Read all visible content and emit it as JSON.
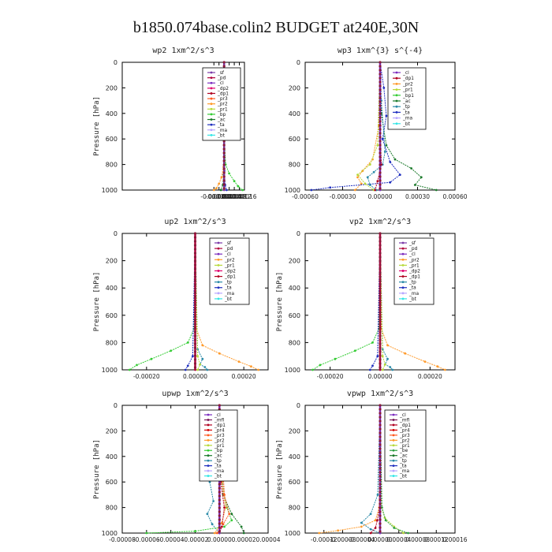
{
  "figure_title": "b1850.074base.colin2  BUDGET at240E,30N",
  "colors": {
    "sf": "#7a3aa8",
    "pd": "#b0003a",
    "cl": "#7b2cbf",
    "dp2": "#e0006b",
    "dp1": "#b00020",
    "pr3": "#ff5a1f",
    "pr2": "#ff9a2a",
    "pr4": "#d40000",
    "pr1": "#b7d93a",
    "bp": "#33cc33",
    "ac": "#1b7a2b",
    "tp": "#2a8aa8",
    "ta": "#1f2fbf",
    "ma": "#b7a6ff",
    "bt": "#33e6e6",
    "mfl": "#7a1a5a",
    "be": "#2ea043"
  },
  "chart_data": [
    {
      "type": "line",
      "title": "wp2  1xm^2/s^3",
      "ylabel": "Pressure  [hPa]",
      "xlim": [
        -0.0008,
        0.00016
      ],
      "ylim": [
        1000,
        0
      ],
      "xticks": [
        "-0.00008",
        "-0.00004",
        "0.00000",
        "0.00004",
        "0.00008",
        "0.00012",
        "0.00016"
      ],
      "xtick_values": [
        -8e-05,
        -4e-05,
        0.0,
        4e-05,
        8e-05,
        0.00012,
        0.00016
      ],
      "yticks": [
        "0",
        "200",
        "400",
        "600",
        "800",
        "1000"
      ],
      "ytick_values": [
        0,
        200,
        400,
        600,
        800,
        1000
      ],
      "legend": [
        "_sf",
        "_pd",
        "_cl",
        "_dp2",
        "_dp1",
        "_pr3",
        "_pr2",
        "_pr1",
        "_bp",
        "_ac",
        "_ta",
        "_ma",
        "_bt"
      ],
      "series": [
        {
          "name": "_bp",
          "color": "#33cc33",
          "x": [
            0,
            2e-06,
            1.2e-05,
            4e-05,
            8e-05,
            0.00011,
            0.000145
          ],
          "y": [
            0,
            600,
            800,
            870,
            930,
            970,
            1000
          ]
        },
        {
          "name": "_pr2",
          "color": "#ff9a2a",
          "x": [
            0,
            -5e-06,
            -2e-05,
            -4e-05,
            -6e-05,
            -8e-05
          ],
          "y": [
            0,
            820,
            900,
            950,
            985,
            1000
          ]
        },
        {
          "name": "_ta",
          "color": "#1f2fbf",
          "x": [
            0,
            2e-06,
            8e-06,
            2e-05
          ],
          "y": [
            0,
            850,
            960,
            1000
          ]
        },
        {
          "name": "_ac",
          "color": "#1b7a2b",
          "x": [
            0,
            -3e-06,
            -1e-05,
            -2.5e-05
          ],
          "y": [
            0,
            880,
            960,
            1000
          ]
        },
        {
          "name": "_sf",
          "color": "#7a3aa8",
          "x": [
            0,
            0,
            0
          ],
          "y": [
            0,
            500,
            1000
          ]
        }
      ]
    },
    {
      "type": "line",
      "title": "wp3  1xm^{3} s^{-4}",
      "ylabel": "",
      "xlim": [
        -0.0006,
        0.0006
      ],
      "ylim": [
        1000,
        0
      ],
      "xticks": [
        "-0.00060",
        "-0.00030",
        "0.00000",
        "0.00030",
        "0.00060"
      ],
      "xtick_values": [
        -0.0006,
        -0.0003,
        0.0,
        0.0003,
        0.0006
      ],
      "yticks": [
        "0",
        "200",
        "400",
        "600",
        "800",
        "1000"
      ],
      "ytick_values": [
        0,
        200,
        400,
        600,
        800,
        1000
      ],
      "legend": [
        "_cl",
        "_dp1",
        "_pr2",
        "_pr1",
        "_bp1",
        "_ac",
        "_tp",
        "_ta",
        "_ma",
        "_bt"
      ],
      "series": [
        {
          "name": "_ac",
          "color": "#1b7a2b",
          "x": [
            0,
            1e-05,
            5e-05,
            0.00012,
            0.00025,
            0.00033,
            0.00028,
            0.00045
          ],
          "y": [
            0,
            400,
            650,
            760,
            830,
            900,
            960,
            1000
          ]
        },
        {
          "name": "_pr2",
          "color": "#ff9a2a",
          "x": [
            0,
            -1e-05,
            -6e-05,
            -0.00014,
            -0.00018,
            -0.00015,
            -0.0002
          ],
          "y": [
            0,
            500,
            760,
            850,
            900,
            950,
            1000
          ]
        },
        {
          "name": "_ta",
          "color": "#1f2fbf",
          "x": [
            0,
            3e-05,
            5e-05,
            2e-05,
            8e-05,
            0.00016,
            8e-05,
            -0.0004,
            -0.00055
          ],
          "y": [
            0,
            200,
            420,
            600,
            780,
            880,
            940,
            980,
            1000
          ]
        },
        {
          "name": "_tp",
          "color": "#2a8aa8",
          "x": [
            0,
            1e-05,
            4e-05,
            2e-05,
            -5e-05,
            -0.0001,
            -8e-05,
            -3e-05
          ],
          "y": [
            0,
            300,
            700,
            800,
            860,
            900,
            960,
            1000
          ]
        },
        {
          "name": "_bp1",
          "color": "#b7d93a",
          "x": [
            0,
            -2e-05,
            -8e-05,
            -0.00018,
            -0.00012,
            -5e-05
          ],
          "y": [
            0,
            650,
            800,
            880,
            950,
            1000
          ]
        },
        {
          "name": "_dp1",
          "color": "#b00020",
          "x": [
            0,
            0.0,
            1e-05,
            -2e-05,
            -4e-05
          ],
          "y": [
            0,
            500,
            800,
            930,
            1000
          ]
        },
        {
          "name": "_cl",
          "color": "#7b2cbf",
          "x": [
            0,
            0,
            0
          ],
          "y": [
            0,
            500,
            1000
          ]
        }
      ]
    },
    {
      "type": "line",
      "title": "up2  1xm^2/s^3",
      "ylabel": "Pressure  [hPa]",
      "xlim": [
        -0.0003,
        0.0003
      ],
      "ylim": [
        1000,
        0
      ],
      "xticks": [
        "-0.00020",
        "0.00000",
        "0.00020"
      ],
      "xtick_values": [
        -0.0002,
        0.0,
        0.0002
      ],
      "yticks": [
        "0",
        "200",
        "400",
        "600",
        "800",
        "1000"
      ],
      "ytick_values": [
        0,
        200,
        400,
        600,
        800,
        1000
      ],
      "legend": [
        "_sf",
        "_pd",
        "_cl",
        "_pr2",
        "_pr1",
        "_dp2",
        "_dp1",
        "_tp",
        "_ta",
        "_ma",
        "_bt"
      ],
      "series": [
        {
          "name": "_dp1",
          "color": "#33cc33",
          "x": [
            0,
            -5e-06,
            -3e-05,
            -0.0001,
            -0.00018,
            -0.00024,
            -0.00027
          ],
          "y": [
            0,
            700,
            800,
            860,
            920,
            965,
            1000
          ]
        },
        {
          "name": "_pr2",
          "color": "#ff9a2a",
          "x": [
            0,
            5e-06,
            3e-05,
            0.0001,
            0.00018,
            0.00023,
            0.00026
          ],
          "y": [
            0,
            700,
            820,
            880,
            940,
            975,
            1000
          ]
        },
        {
          "name": "_tp",
          "color": "#2a8aa8",
          "x": [
            0,
            1e-05,
            3e-05,
            2e-05,
            4e-05,
            5e-05
          ],
          "y": [
            0,
            850,
            920,
            960,
            980,
            1000
          ]
        },
        {
          "name": "_ta",
          "color": "#1f2fbf",
          "x": [
            0,
            -1e-05,
            -3e-05,
            -4e-05
          ],
          "y": [
            0,
            900,
            970,
            1000
          ]
        },
        {
          "name": "_pr1",
          "color": "#b7d93a",
          "x": [
            0,
            1e-05,
            2e-05,
            1e-05
          ],
          "y": [
            0,
            900,
            960,
            1000
          ]
        },
        {
          "name": "_sf",
          "color": "#b0003a",
          "x": [
            0,
            0,
            0
          ],
          "y": [
            0,
            500,
            1000
          ]
        }
      ]
    },
    {
      "type": "line",
      "title": "vp2  1xm^2/s^3",
      "ylabel": "Pressure  [hPa]",
      "xlim": [
        -0.0003,
        0.0003
      ],
      "ylim": [
        1000,
        0
      ],
      "xticks": [
        "-0.00020",
        "0.00000",
        "0.00020"
      ],
      "xtick_values": [
        -0.0002,
        0.0,
        0.0002
      ],
      "yticks": [
        "0",
        "200",
        "400",
        "600",
        "800",
        "1000"
      ],
      "ytick_values": [
        0,
        200,
        400,
        600,
        800,
        1000
      ],
      "legend": [
        "_sf",
        "_pd",
        "_cl",
        "_pr2",
        "_pr1",
        "_dp2",
        "_dp1",
        "_tp",
        "_ta",
        "_ma",
        "_bt"
      ],
      "series": [
        {
          "name": "_dp1",
          "color": "#33cc33",
          "x": [
            0,
            -5e-06,
            -3e-05,
            -0.0001,
            -0.00018,
            -0.00024,
            -0.00027
          ],
          "y": [
            0,
            700,
            800,
            860,
            920,
            965,
            1000
          ]
        },
        {
          "name": "_pr2",
          "color": "#ff9a2a",
          "x": [
            0,
            5e-06,
            3e-05,
            0.0001,
            0.00018,
            0.00023,
            0.00026
          ],
          "y": [
            0,
            700,
            820,
            880,
            940,
            975,
            1000
          ]
        },
        {
          "name": "_tp",
          "color": "#2a8aa8",
          "x": [
            0,
            1e-05,
            3e-05,
            2e-05,
            4e-05,
            5e-05
          ],
          "y": [
            0,
            850,
            920,
            960,
            980,
            1000
          ]
        },
        {
          "name": "_ta",
          "color": "#1f2fbf",
          "x": [
            0,
            -1e-05,
            -3e-05,
            -4e-05
          ],
          "y": [
            0,
            900,
            970,
            1000
          ]
        },
        {
          "name": "_pr1",
          "color": "#b7d93a",
          "x": [
            0,
            1e-05,
            2e-05,
            1e-05
          ],
          "y": [
            0,
            900,
            960,
            1000
          ]
        },
        {
          "name": "_sf",
          "color": "#b0003a",
          "x": [
            0,
            0,
            0
          ],
          "y": [
            0,
            500,
            1000
          ]
        }
      ]
    },
    {
      "type": "line",
      "title": "upwp  1xm^2/s^3",
      "ylabel": "Pressure  [hPa]",
      "xlim": [
        -8e-05,
        4e-05
      ],
      "ylim": [
        1000,
        0
      ],
      "xticks": [
        "-0.00008",
        "-0.00006",
        "-0.00004",
        "-0.00002",
        "0.00000",
        "0.00002",
        "0.00004"
      ],
      "xtick_values": [
        -8e-05,
        -6e-05,
        -4e-05,
        -2e-05,
        0.0,
        2e-05,
        4e-05
      ],
      "yticks": [
        "0",
        "200",
        "400",
        "600",
        "800",
        "1000"
      ],
      "ytick_values": [
        0,
        200,
        400,
        600,
        800,
        1000
      ],
      "legend": [
        "_cl",
        "_mfl",
        "_dp1",
        "_pr4",
        "_pr3",
        "_pr2",
        "_pr1",
        "_bp",
        "_ac",
        "_tp",
        "_ta",
        "_ma",
        "_bt"
      ],
      "series": [
        {
          "name": "_tp",
          "color": "#2a8aa8",
          "x": [
            0,
            -3e-06,
            -6e-06,
            -4e-06,
            -8e-06,
            -5e-06,
            -1e-05,
            -6e-06,
            0.0
          ],
          "y": [
            0,
            150,
            300,
            450,
            600,
            750,
            850,
            930,
            1000
          ]
        },
        {
          "name": "_bp",
          "color": "#33cc33",
          "x": [
            0,
            2e-06,
            6e-06,
            1e-05,
            4e-06,
            -2e-05,
            -6e-05
          ],
          "y": [
            0,
            600,
            800,
            900,
            950,
            985,
            1000
          ]
        },
        {
          "name": "_ac",
          "color": "#1b7a2b",
          "x": [
            0,
            3e-06,
            1e-05,
            1.8e-05,
            2e-05
          ],
          "y": [
            0,
            700,
            850,
            950,
            1000
          ]
        },
        {
          "name": "_pr2",
          "color": "#ff9a2a",
          "x": [
            0,
            2e-06,
            5e-06,
            2e-06,
            -4e-06
          ],
          "y": [
            0,
            600,
            800,
            920,
            1000
          ]
        },
        {
          "name": "_pr3",
          "color": "#ff5a1f",
          "x": [
            0,
            4e-06,
            8e-06,
            3e-06,
            -2e-06
          ],
          "y": [
            0,
            700,
            850,
            930,
            1000
          ]
        },
        {
          "name": "_dp1",
          "color": "#b00020",
          "x": [
            0,
            1e-06,
            4e-06,
            2e-06,
            0.0
          ],
          "y": [
            0,
            600,
            800,
            950,
            1000
          ]
        },
        {
          "name": "_cl",
          "color": "#7b2cbf",
          "x": [
            0,
            0,
            0
          ],
          "y": [
            0,
            500,
            1000
          ]
        }
      ]
    },
    {
      "type": "line",
      "title": "vpwp  1xm^2/s^3",
      "ylabel": "Pressure  [hPa]",
      "xlim": [
        -0.00016,
        0.00016
      ],
      "ylim": [
        1000,
        0
      ],
      "xticks": [
        "-0.00012",
        "-0.00008",
        "-0.00004",
        "0.00000",
        "0.00004",
        "0.00008",
        "0.00012",
        "0.00016"
      ],
      "xtick_values": [
        -0.00012,
        -8e-05,
        -4e-05,
        0.0,
        4e-05,
        8e-05,
        0.00012,
        0.00016
      ],
      "yticks": [
        "0",
        "200",
        "400",
        "600",
        "800",
        "1000"
      ],
      "ytick_values": [
        0,
        200,
        400,
        600,
        800,
        1000
      ],
      "legend": [
        "_cl",
        "_mfl",
        "_dp1",
        "_pr4",
        "_pr3",
        "_pr2",
        "_pr1",
        "_be",
        "_ac",
        "_tp",
        "_ta",
        "_ma",
        "_bt"
      ],
      "series": [
        {
          "name": "_pr2",
          "color": "#ff9a2a",
          "x": [
            0,
            -2e-06,
            -1e-05,
            -4e-05,
            -9e-05,
            -0.00013
          ],
          "y": [
            0,
            800,
            900,
            950,
            980,
            1000
          ]
        },
        {
          "name": "_tp",
          "color": "#2a8aa8",
          "x": [
            0,
            -5e-06,
            -2e-05,
            -4e-05,
            -2e-05,
            0.0
          ],
          "y": [
            0,
            700,
            850,
            920,
            970,
            1000
          ]
        },
        {
          "name": "_pr1",
          "color": "#b7d93a",
          "x": [
            0,
            3e-06,
            1e-05,
            3e-05,
            5e-05
          ],
          "y": [
            0,
            800,
            880,
            950,
            1000
          ]
        },
        {
          "name": "_be",
          "color": "#2ea043",
          "x": [
            0,
            4e-06,
            1.2e-05,
            3e-05,
            6e-05
          ],
          "y": [
            0,
            800,
            900,
            960,
            1000
          ]
        },
        {
          "name": "_dp1",
          "color": "#b00020",
          "x": [
            0,
            -1e-06,
            -6e-06,
            -1e-05,
            -2e-05
          ],
          "y": [
            0,
            800,
            900,
            960,
            1000
          ]
        },
        {
          "name": "_cl",
          "color": "#7b2cbf",
          "x": [
            0,
            0,
            0
          ],
          "y": [
            0,
            500,
            1000
          ]
        }
      ]
    }
  ]
}
